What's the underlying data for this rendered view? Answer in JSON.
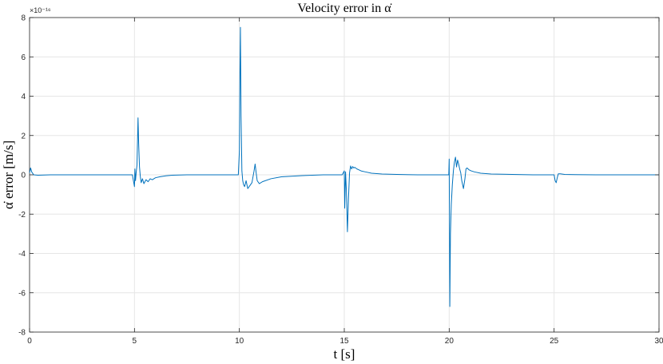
{
  "chart_data": {
    "type": "line",
    "title": "Velocity error in α̇",
    "xlabel": "t [s]",
    "ylabel": "α̇ error [m/s]",
    "y_exponent_label": "×10⁻¹⁶",
    "xlim": [
      0,
      30
    ],
    "ylim": [
      -8,
      8
    ],
    "xticks": [
      0,
      5,
      10,
      15,
      20,
      25,
      30
    ],
    "yticks": [
      -8,
      -6,
      -4,
      -2,
      0,
      2,
      4,
      6,
      8
    ],
    "grid": true,
    "series_color": "#0072BD",
    "series": [
      {
        "x": [
          0,
          0.05,
          0.1,
          0.2,
          0.4,
          1.0,
          2.0,
          3.0,
          4.0,
          4.9,
          5.0,
          5.02,
          5.05,
          5.08,
          5.12,
          5.17,
          5.2,
          5.24,
          5.28,
          5.32,
          5.38,
          5.45,
          5.55,
          5.65,
          5.75,
          5.85,
          6.0,
          6.2,
          6.5,
          6.8,
          7.5,
          8.5,
          9.5,
          9.95,
          10.0,
          10.02,
          10.05,
          10.08,
          10.12,
          10.16,
          10.2,
          10.25,
          10.32,
          10.4,
          10.5,
          10.6,
          10.7,
          10.75,
          10.8,
          10.85,
          10.95,
          11.1,
          11.5,
          12.0,
          13.0,
          14.0,
          14.9,
          15.0,
          15.02,
          15.06,
          15.1,
          15.15,
          15.2,
          15.25,
          15.3,
          15.35,
          15.4,
          15.45,
          15.5,
          15.6,
          15.7,
          15.8,
          16.0,
          16.3,
          16.8,
          17.5,
          18.5,
          19.5,
          19.98,
          20.0,
          20.03,
          20.06,
          20.1,
          20.15,
          20.2,
          20.25,
          20.3,
          20.35,
          20.4,
          20.45,
          20.5,
          20.55,
          20.6,
          20.68,
          20.75,
          20.8,
          20.85,
          20.9,
          20.95,
          21.05,
          21.2,
          21.5,
          22.0,
          23.0,
          24.0,
          24.95,
          25.0,
          25.05,
          25.1,
          25.15,
          25.2,
          25.3,
          25.5,
          26.0,
          27.0,
          28.0,
          29.0,
          30.0
        ],
        "y": [
          0.1,
          0.35,
          0.15,
          0.0,
          -0.02,
          0.0,
          0.0,
          0.0,
          0.0,
          0.0,
          -0.6,
          0.3,
          -0.3,
          0.1,
          0.5,
          2.9,
          1.6,
          0.4,
          -0.1,
          -0.4,
          -0.2,
          -0.45,
          -0.25,
          -0.35,
          -0.2,
          -0.25,
          -0.15,
          -0.1,
          -0.05,
          -0.02,
          0.0,
          0.0,
          0.0,
          0.0,
          1.2,
          4.5,
          7.5,
          3.0,
          0.2,
          -0.3,
          -0.5,
          -0.6,
          -0.3,
          -0.7,
          -0.55,
          -0.4,
          0.2,
          0.55,
          0.1,
          -0.3,
          -0.45,
          -0.35,
          -0.2,
          -0.1,
          -0.04,
          0.0,
          0.0,
          0.2,
          -1.7,
          0.15,
          -0.8,
          -2.9,
          -1.2,
          0.1,
          0.45,
          0.3,
          0.42,
          0.35,
          0.38,
          0.3,
          0.25,
          0.2,
          0.15,
          0.08,
          0.04,
          0.02,
          0.0,
          0.0,
          0.0,
          0.8,
          -6.7,
          -3.0,
          -1.5,
          -0.5,
          0.2,
          0.65,
          0.9,
          0.4,
          0.75,
          0.55,
          0.3,
          0.1,
          -0.3,
          -0.7,
          -0.2,
          0.3,
          0.35,
          0.3,
          0.25,
          0.2,
          0.15,
          0.08,
          0.04,
          0.02,
          0.0,
          0.0,
          0.0,
          -0.3,
          -0.4,
          -0.15,
          0.05,
          0.05,
          0.02,
          0.01,
          0.0,
          0.0,
          0.0,
          0.0
        ]
      }
    ]
  }
}
